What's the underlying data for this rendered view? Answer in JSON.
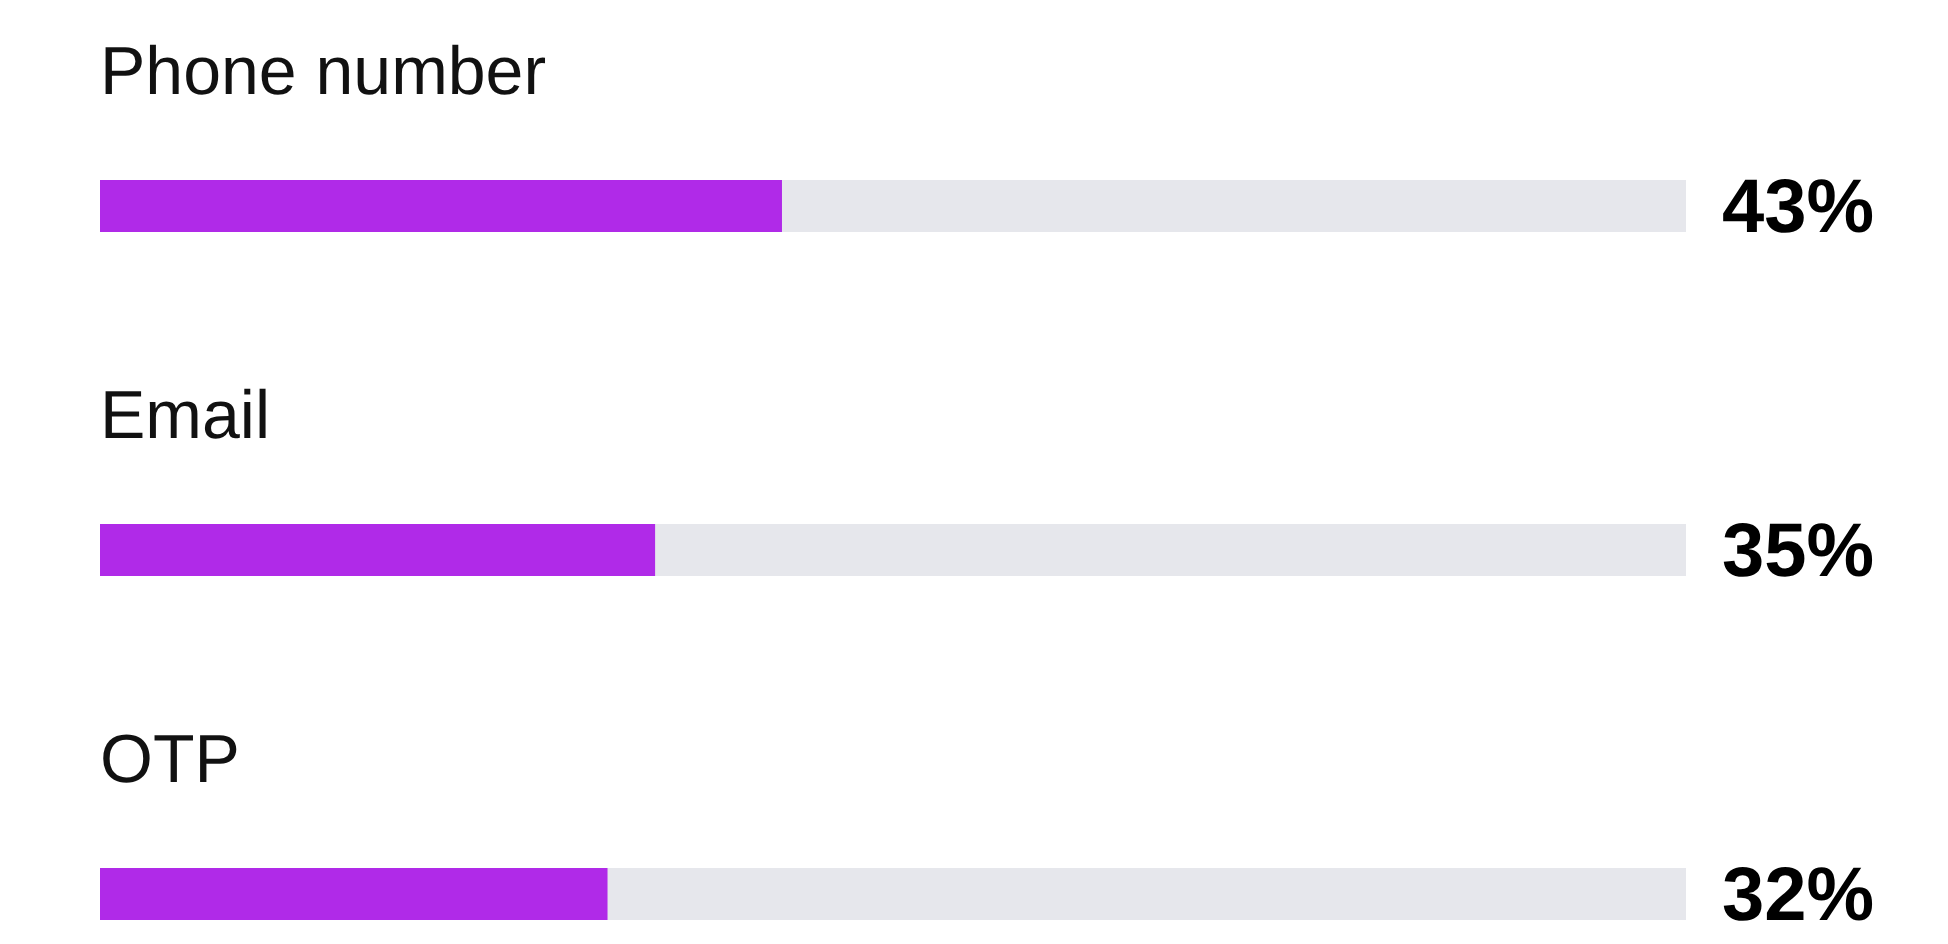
{
  "chart_data": {
    "type": "bar",
    "orientation": "horizontal",
    "categories": [
      "Phone number",
      "Email",
      "OTP"
    ],
    "values": [
      43,
      35,
      32
    ],
    "value_labels": [
      "43%",
      "35%",
      "32%"
    ],
    "color": "#b02ae8",
    "xlim": [
      0,
      100
    ]
  }
}
